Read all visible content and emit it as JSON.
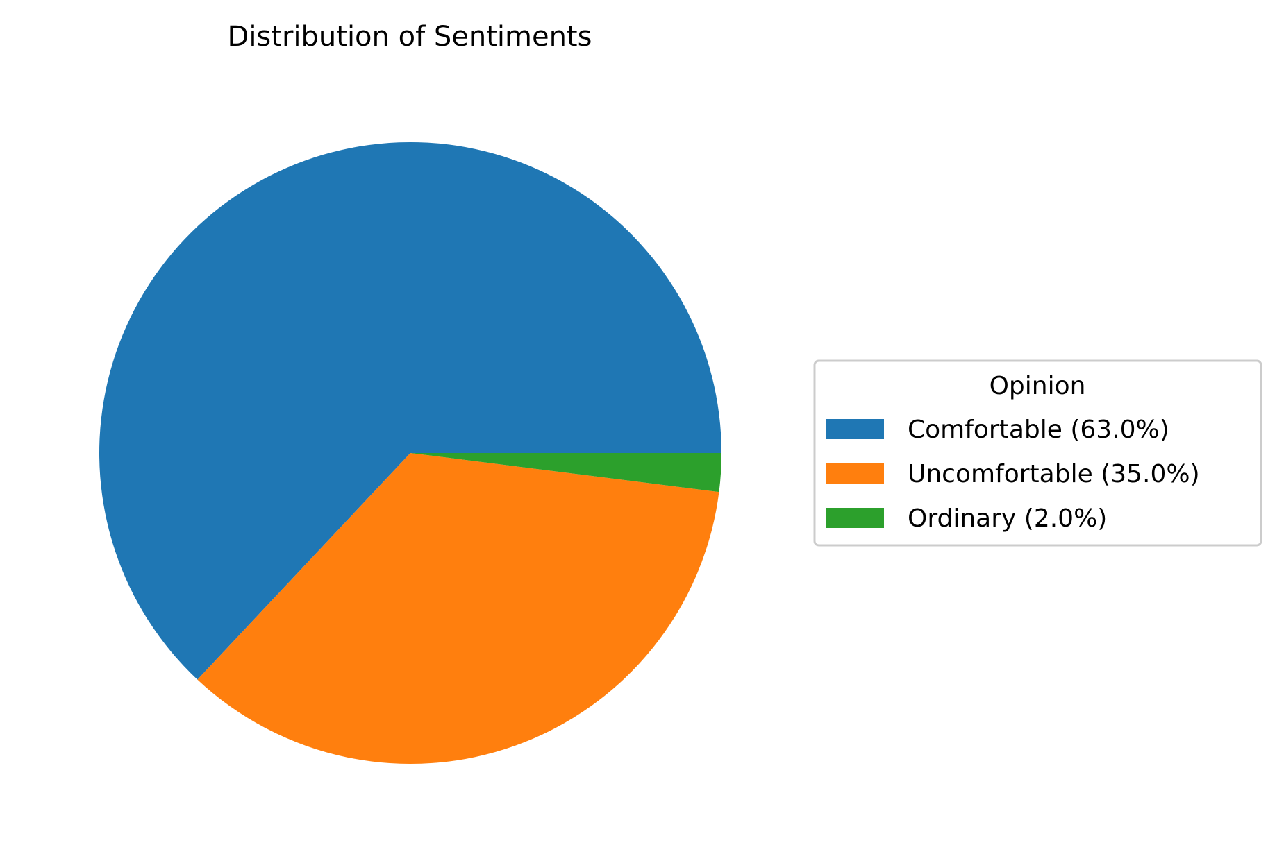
{
  "chart_data": {
    "type": "pie",
    "title": "Distribution of Sentiments",
    "categories": [
      "Comfortable",
      "Uncomfortable",
      "Ordinary"
    ],
    "values": [
      63.0,
      35.0,
      2.0
    ],
    "colors": [
      "#1f77b4",
      "#ff7f0e",
      "#2ca02c"
    ],
    "start_angle_deg": 0,
    "direction": "counterclockwise",
    "legend": {
      "title": "Opinion",
      "placement": "center-right",
      "entries": [
        "Comfortable (63.0%)",
        "Uncomfortable (35.0%)",
        "Ordinary (2.0%)"
      ]
    }
  }
}
